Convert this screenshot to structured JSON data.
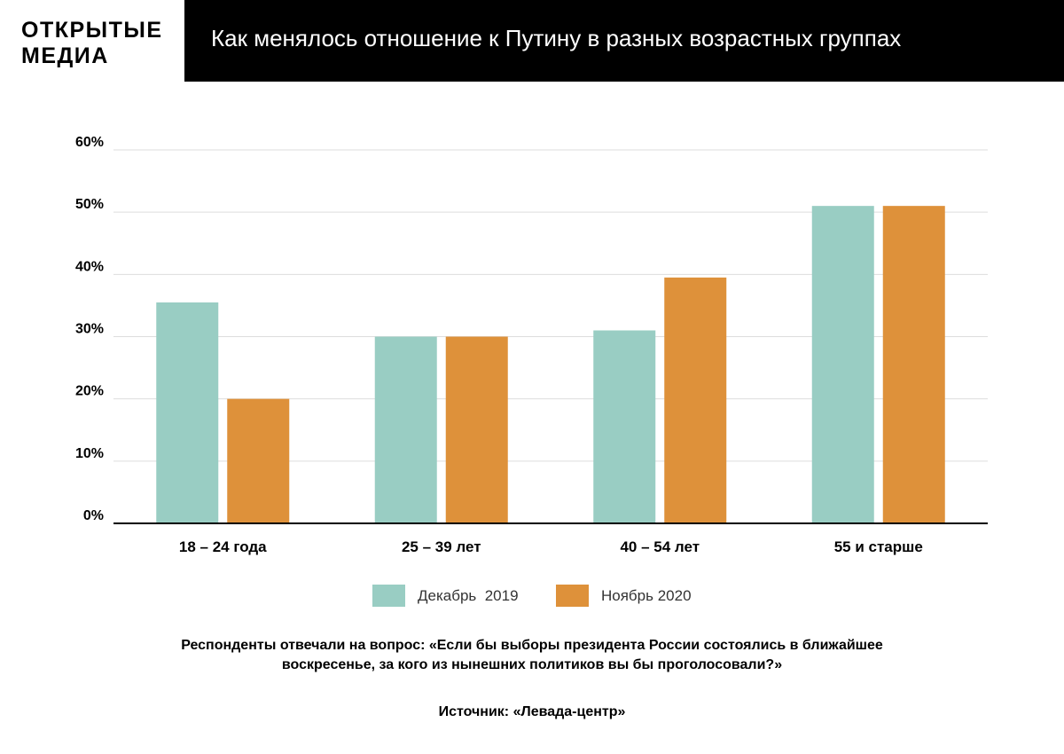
{
  "header": {
    "logo_line1": "ОТКРЫТЫЕ",
    "logo_line2": "МЕДИА",
    "title": "Как менялось отношение к Путину в разных возрастных группах"
  },
  "legend": [
    {
      "label": "Декабрь  2019",
      "color": "#99cdc3"
    },
    {
      "label": "Ноябрь 2020",
      "color": "#de913a"
    }
  ],
  "chart_data": {
    "type": "bar",
    "categories": [
      "18 – 24 года",
      "25 – 39 лет",
      "40 – 54 лет",
      "55 и старше"
    ],
    "series": [
      {
        "name": "Декабрь  2019",
        "values": [
          35.5,
          30,
          31,
          51
        ],
        "color": "#99cdc3"
      },
      {
        "name": "Ноябрь 2020",
        "values": [
          20,
          30,
          39.5,
          51
        ],
        "color": "#de913a"
      }
    ],
    "yticks": [
      "0%",
      "10%",
      "20%",
      "30%",
      "40%",
      "50%",
      "60%"
    ],
    "ylim": [
      0,
      60
    ],
    "grid": true,
    "legend_position": "bottom"
  },
  "footer": {
    "note_line1": "Респонденты отвечали на вопрос: «Если бы выборы президента России состоялись в ближайшее",
    "note_line2": "воскресенье, за кого из нынешних политиков вы бы проголосовали?»",
    "source": "Источник: «Левада-центр»"
  }
}
